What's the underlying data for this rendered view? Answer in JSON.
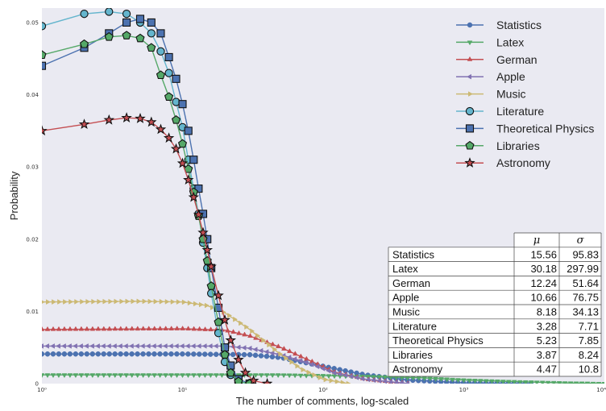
{
  "chart_data": {
    "type": "line",
    "xlabel": "The number of comments, log-scaled",
    "ylabel": "Probability",
    "xscale": "log",
    "xlim": [
      1,
      10000
    ],
    "ylim": [
      0,
      0.052
    ],
    "x_ticks": [
      1,
      10,
      100,
      1000,
      10000
    ],
    "x_tick_labels": [
      "10⁰",
      "10¹",
      "10²",
      "10³",
      "10⁴"
    ],
    "y_ticks": [
      0,
      0.01,
      0.02,
      0.03,
      0.04,
      0.05
    ],
    "y_tick_labels": [
      "0",
      "0.01",
      "0.02",
      "0.03",
      "0.04",
      "0.05"
    ],
    "grid": false,
    "legend_position": "top-right",
    "series": [
      {
        "name": "Statistics",
        "color": "#4c72b0",
        "marker": "circle",
        "x": [
          1,
          10,
          30,
          50,
          100,
          200,
          400,
          1000,
          3000
        ],
        "y": [
          0.0041,
          0.0041,
          0.004,
          0.0036,
          0.0024,
          0.0012,
          0.0005,
          0.0001,
          0
        ]
      },
      {
        "name": "Latex",
        "color": "#55a868",
        "marker": "triangle-down",
        "x": [
          1,
          10,
          50,
          100,
          200,
          500,
          1000,
          2000,
          5000,
          10000
        ],
        "y": [
          0.0012,
          0.0012,
          0.0012,
          0.0011,
          0.001,
          0.0008,
          0.0005,
          0.0003,
          0.0001,
          0
        ]
      },
      {
        "name": "German",
        "color": "#c44e52",
        "marker": "triangle-up",
        "x": [
          1,
          10,
          20,
          30,
          50,
          80,
          120,
          200,
          400
        ],
        "y": [
          0.0075,
          0.0076,
          0.0074,
          0.0066,
          0.005,
          0.0032,
          0.0016,
          0.0006,
          0
        ]
      },
      {
        "name": "Apple",
        "color": "#8172b2",
        "marker": "triangle-left",
        "x": [
          1,
          10,
          20,
          30,
          50,
          80,
          120,
          200,
          400
        ],
        "y": [
          0.0052,
          0.0052,
          0.0052,
          0.0049,
          0.004,
          0.0028,
          0.0015,
          0.0006,
          0
        ]
      },
      {
        "name": "Music",
        "color": "#ccb974",
        "marker": "triangle-right",
        "x": [
          1,
          5,
          10,
          15,
          20,
          30,
          50,
          70,
          100,
          150
        ],
        "y": [
          0.0113,
          0.0114,
          0.0113,
          0.0108,
          0.0098,
          0.0075,
          0.004,
          0.002,
          0.0006,
          0
        ]
      },
      {
        "name": "Literature",
        "color": "#64b5cd",
        "marker": "circle",
        "x": [
          1,
          2,
          3,
          4,
          5,
          6,
          7,
          8,
          9,
          10,
          11,
          12,
          13,
          14,
          15,
          16,
          18,
          20,
          22,
          25,
          30
        ],
        "y": [
          0.0495,
          0.0512,
          0.0515,
          0.0512,
          0.05,
          0.0485,
          0.046,
          0.043,
          0.039,
          0.0355,
          0.031,
          0.027,
          0.0235,
          0.0195,
          0.016,
          0.0125,
          0.007,
          0.003,
          0.0012,
          0.0002,
          0
        ]
      },
      {
        "name": "Theoretical Physics",
        "color": "#4c72b0",
        "marker": "square",
        "x": [
          1,
          2,
          3,
          4,
          5,
          6,
          7,
          8,
          9,
          10,
          11,
          12,
          13,
          14,
          15,
          16,
          18,
          20,
          22,
          25,
          30
        ],
        "y": [
          0.044,
          0.0465,
          0.0485,
          0.05,
          0.0505,
          0.05,
          0.0485,
          0.0452,
          0.0422,
          0.0387,
          0.035,
          0.031,
          0.027,
          0.0235,
          0.02,
          0.016,
          0.0105,
          0.005,
          0.0025,
          0.0006,
          0
        ]
      },
      {
        "name": "Libraries",
        "color": "#55a868",
        "marker": "pentagon",
        "x": [
          1,
          2,
          3,
          4,
          5,
          6,
          7,
          8,
          9,
          10,
          11,
          12,
          13,
          14,
          15,
          16,
          18,
          20,
          22,
          25,
          30
        ],
        "y": [
          0.0455,
          0.047,
          0.048,
          0.0482,
          0.0478,
          0.0465,
          0.0427,
          0.0397,
          0.0365,
          0.0332,
          0.0297,
          0.0265,
          0.0232,
          0.02,
          0.017,
          0.0135,
          0.0085,
          0.004,
          0.0015,
          0.0003,
          0
        ]
      },
      {
        "name": "Astronomy",
        "color": "#c44e52",
        "marker": "star",
        "x": [
          1,
          2,
          3,
          4,
          5,
          6,
          7,
          8,
          9,
          10,
          11,
          12,
          13,
          14,
          15,
          16,
          18,
          20,
          22,
          25,
          28,
          32,
          40
        ],
        "y": [
          0.035,
          0.0359,
          0.0365,
          0.0368,
          0.0367,
          0.0362,
          0.0352,
          0.034,
          0.0325,
          0.0305,
          0.0282,
          0.0258,
          0.0234,
          0.0209,
          0.0185,
          0.0162,
          0.0122,
          0.0088,
          0.006,
          0.0033,
          0.0015,
          0.0004,
          0
        ]
      }
    ],
    "table": {
      "headers": [
        "",
        "μ",
        "σ"
      ],
      "rows": [
        [
          "Statistics",
          "15.56",
          "95.83"
        ],
        [
          "Latex",
          "30.18",
          "297.99"
        ],
        [
          "German",
          "12.24",
          "51.64"
        ],
        [
          "Apple",
          "10.66",
          "76.75"
        ],
        [
          "Music",
          "8.18",
          "34.13"
        ],
        [
          "Literature",
          "3.28",
          "7.71"
        ],
        [
          "Theoretical Physics",
          "5.23",
          "7.85"
        ],
        [
          "Libraries",
          "3.87",
          "8.24"
        ],
        [
          "Astronomy",
          "4.47",
          "10.8"
        ]
      ]
    },
    "colors": {
      "plot_background": "#eaeaf2",
      "figure_background": "#ffffff"
    }
  }
}
